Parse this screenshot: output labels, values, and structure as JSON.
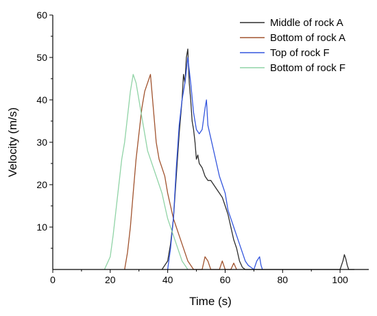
{
  "chart_data": {
    "type": "line",
    "xlabel": "Time (s)",
    "ylabel": "Velocity (m/s)",
    "xlim": [
      0,
      110
    ],
    "ylim": [
      0,
      60
    ],
    "xticks": [
      0,
      20,
      40,
      60,
      80,
      100
    ],
    "yticks": [
      10,
      20,
      30,
      40,
      50,
      60
    ],
    "x_tick_labels": [
      "0",
      "20",
      "40",
      "60",
      "80",
      "100"
    ],
    "y_tick_labels": [
      "10",
      "20",
      "30",
      "40",
      "50",
      "60"
    ],
    "legend_position": "top-right",
    "grid": false,
    "series": [
      {
        "name": "Middle of rock A",
        "color": "#2b2b2b",
        "points": [
          [
            38,
            0
          ],
          [
            40,
            2
          ],
          [
            41,
            6
          ],
          [
            42,
            12
          ],
          [
            43,
            22
          ],
          [
            44,
            32
          ],
          [
            45,
            40
          ],
          [
            45.5,
            46
          ],
          [
            46,
            44
          ],
          [
            46.5,
            50
          ],
          [
            47,
            52
          ],
          [
            47.5,
            44
          ],
          [
            48,
            40
          ],
          [
            48.5,
            35
          ],
          [
            49,
            33
          ],
          [
            49.5,
            30
          ],
          [
            50,
            26
          ],
          [
            50.5,
            27
          ],
          [
            51,
            25
          ],
          [
            52,
            24
          ],
          [
            53,
            22
          ],
          [
            54,
            21
          ],
          [
            55,
            21
          ],
          [
            56,
            20
          ],
          [
            57,
            19
          ],
          [
            58,
            18
          ],
          [
            59,
            17
          ],
          [
            60,
            15
          ],
          [
            61,
            13
          ],
          [
            62,
            10
          ],
          [
            63,
            7
          ],
          [
            64,
            5
          ],
          [
            65,
            2
          ],
          [
            66,
            0.5
          ],
          [
            67,
            0
          ],
          [
            70,
            0
          ],
          [
            100,
            0
          ],
          [
            101,
            2
          ],
          [
            101.5,
            3.5
          ],
          [
            102,
            2.5
          ],
          [
            102.5,
            1
          ],
          [
            103,
            0
          ],
          [
            105,
            0
          ]
        ]
      },
      {
        "name": "Bottom of rock A",
        "color": "#a0522d",
        "points": [
          [
            25,
            0
          ],
          [
            26,
            4
          ],
          [
            27,
            10
          ],
          [
            28,
            18
          ],
          [
            29,
            26
          ],
          [
            30,
            32
          ],
          [
            31,
            38
          ],
          [
            32,
            42
          ],
          [
            33,
            44
          ],
          [
            34,
            46
          ],
          [
            35,
            38
          ],
          [
            36,
            30
          ],
          [
            37,
            26
          ],
          [
            38,
            24
          ],
          [
            39,
            22
          ],
          [
            40,
            18
          ],
          [
            41,
            15
          ],
          [
            42,
            12
          ],
          [
            43,
            10
          ],
          [
            44,
            8
          ],
          [
            45,
            6
          ],
          [
            46,
            4
          ],
          [
            47,
            2
          ],
          [
            48,
            1
          ],
          [
            49,
            0
          ],
          [
            52,
            0
          ],
          [
            53,
            3
          ],
          [
            54,
            2
          ],
          [
            55,
            0
          ],
          [
            58,
            0
          ],
          [
            59,
            2
          ],
          [
            60,
            0
          ],
          [
            62,
            0
          ],
          [
            63,
            1.5
          ],
          [
            64,
            0
          ]
        ]
      },
      {
        "name": "Top of rock F",
        "color": "#3355dd",
        "points": [
          [
            40,
            0
          ],
          [
            41,
            5
          ],
          [
            42,
            12
          ],
          [
            43,
            24
          ],
          [
            44,
            34
          ],
          [
            45,
            40
          ],
          [
            46,
            44
          ],
          [
            47,
            50
          ],
          [
            48,
            44
          ],
          [
            49,
            37
          ],
          [
            50,
            33
          ],
          [
            51,
            32
          ],
          [
            52,
            33
          ],
          [
            53,
            38
          ],
          [
            53.5,
            40
          ],
          [
            54,
            34
          ],
          [
            55,
            31
          ],
          [
            56,
            28
          ],
          [
            57,
            25
          ],
          [
            58,
            22
          ],
          [
            59,
            20
          ],
          [
            60,
            18
          ],
          [
            61,
            14
          ],
          [
            62,
            12
          ],
          [
            63,
            10
          ],
          [
            64,
            8
          ],
          [
            65,
            6
          ],
          [
            66,
            4
          ],
          [
            67,
            2
          ],
          [
            68,
            1
          ],
          [
            69,
            0.5
          ],
          [
            70,
            0
          ],
          [
            71,
            2
          ],
          [
            72,
            3
          ],
          [
            72.5,
            1
          ],
          [
            73,
            0
          ]
        ]
      },
      {
        "name": "Bottom of rock F",
        "color": "#8fd3a5",
        "points": [
          [
            18,
            0
          ],
          [
            20,
            3
          ],
          [
            21,
            8
          ],
          [
            22,
            14
          ],
          [
            23,
            20
          ],
          [
            24,
            26
          ],
          [
            25,
            30
          ],
          [
            26,
            36
          ],
          [
            27,
            42
          ],
          [
            28,
            46
          ],
          [
            29,
            44
          ],
          [
            30,
            40
          ],
          [
            31,
            36
          ],
          [
            32,
            32
          ],
          [
            33,
            28
          ],
          [
            34,
            26
          ],
          [
            35,
            24
          ],
          [
            36,
            22
          ],
          [
            37,
            20
          ],
          [
            38,
            18
          ],
          [
            39,
            15
          ],
          [
            40,
            12
          ],
          [
            41,
            10
          ],
          [
            42,
            8
          ],
          [
            43,
            6
          ],
          [
            44,
            4
          ],
          [
            45,
            2
          ],
          [
            46,
            1
          ],
          [
            47,
            0
          ]
        ]
      }
    ]
  }
}
